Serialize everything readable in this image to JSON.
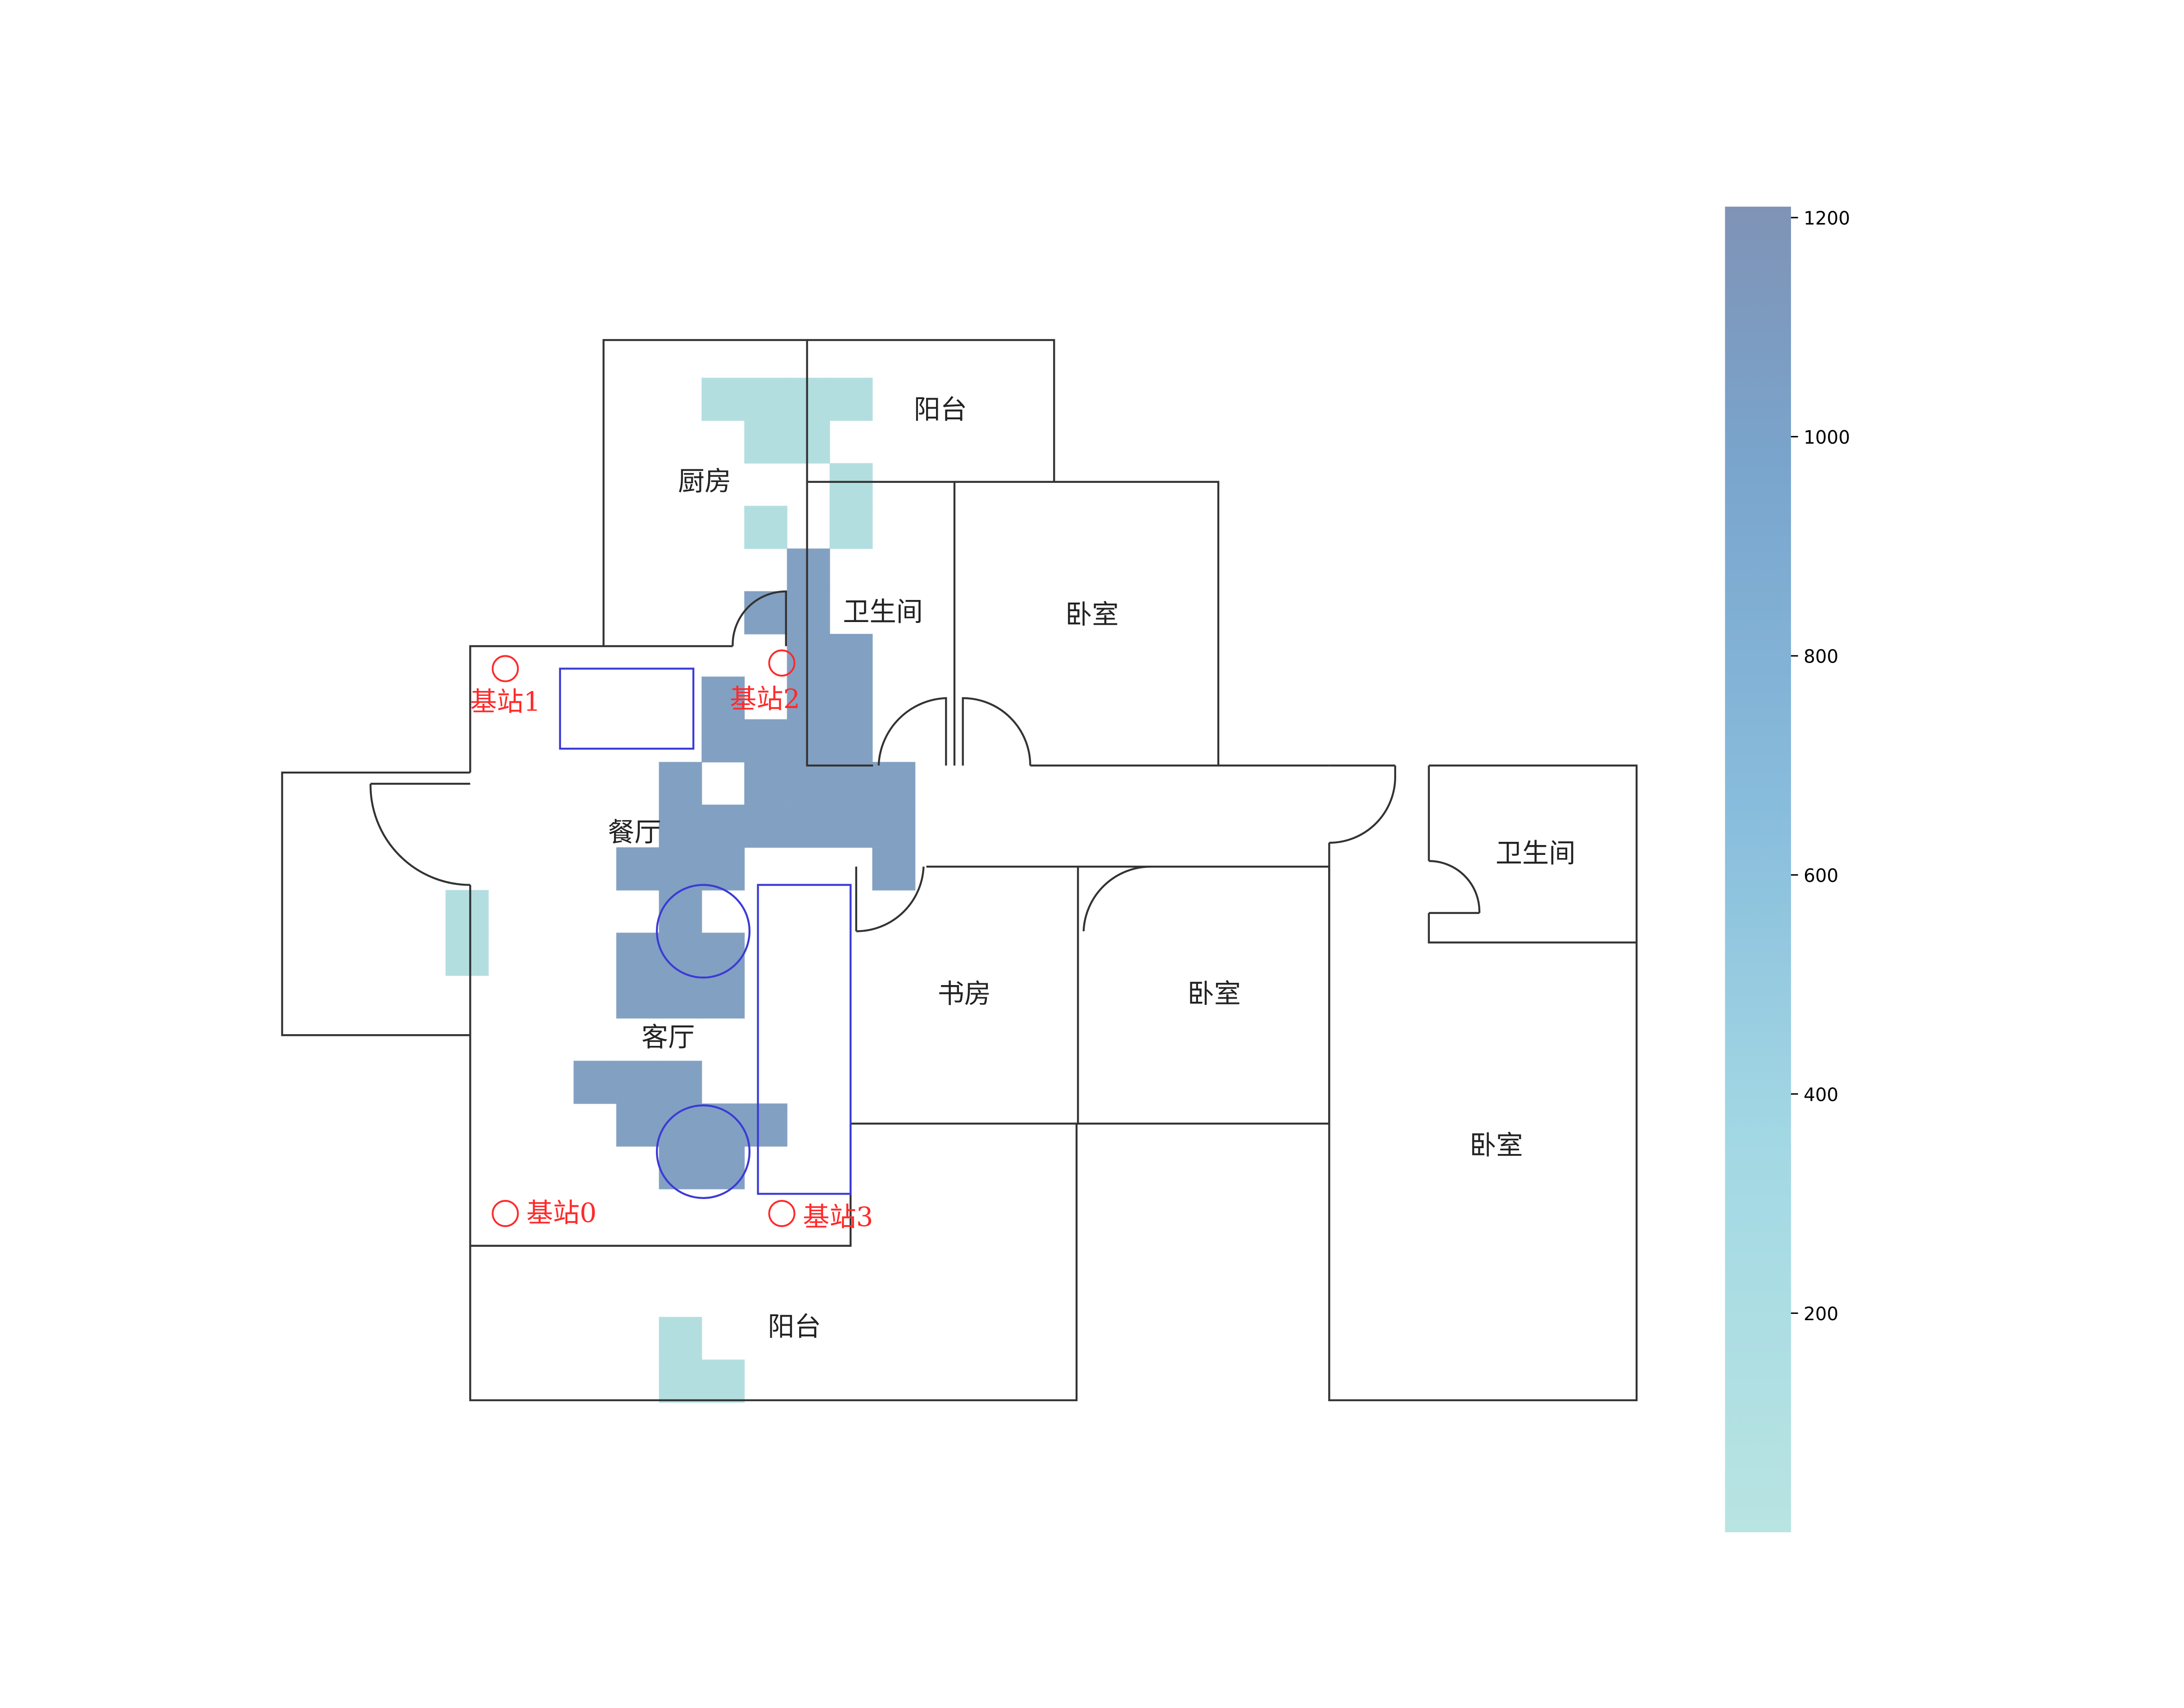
{
  "rooms": [
    {
      "id": "kitchen",
      "label": "厨房"
    },
    {
      "id": "balcony-top",
      "label": "阳台"
    },
    {
      "id": "bathroom-1",
      "label": "卫生间"
    },
    {
      "id": "bedroom-1",
      "label": "卧室"
    },
    {
      "id": "dining",
      "label": "餐厅"
    },
    {
      "id": "living",
      "label": "客厅"
    },
    {
      "id": "study",
      "label": "书房"
    },
    {
      "id": "bedroom-2",
      "label": "卧室"
    },
    {
      "id": "bathroom-2",
      "label": "卫生间"
    },
    {
      "id": "bedroom-3",
      "label": "卧室"
    },
    {
      "id": "balcony-bottom",
      "label": "阳台"
    }
  ],
  "base_stations": [
    {
      "id": "0",
      "label": "基站0"
    },
    {
      "id": "1",
      "label": "基站1"
    },
    {
      "id": "2",
      "label": "基站2"
    },
    {
      "id": "3",
      "label": "基站3"
    }
  ],
  "colors": {
    "wall": "#333333",
    "furniture": "#3b3bd6",
    "station": "#ff2a2a",
    "heat_low": "#b8e4e2",
    "heat_high": "#7f9cc0"
  },
  "colorbar": {
    "min": 0,
    "max": 1210,
    "ticks": [
      "200",
      "400",
      "600",
      "800",
      "1000",
      "1200"
    ]
  },
  "chart_data": {
    "type": "heatmap",
    "value_scale": [
      0,
      1210
    ],
    "cells": [
      {
        "row": 0,
        "col": 5,
        "value": 100
      },
      {
        "row": 0,
        "col": 6,
        "value": 100
      },
      {
        "row": 0,
        "col": 7,
        "value": 100
      },
      {
        "row": 0,
        "col": 8,
        "value": 100
      },
      {
        "row": 1,
        "col": 6,
        "value": 100
      },
      {
        "row": 1,
        "col": 7,
        "value": 100
      },
      {
        "row": 2,
        "col": 8,
        "value": 100
      },
      {
        "row": 3,
        "col": 6,
        "value": 100
      },
      {
        "row": 3,
        "col": 8,
        "value": 100
      },
      {
        "row": 4,
        "col": 7,
        "value": 1150
      },
      {
        "row": 5,
        "col": 6,
        "value": 1150
      },
      {
        "row": 5,
        "col": 7,
        "value": 1150
      },
      {
        "row": 6,
        "col": 7,
        "value": 1150
      },
      {
        "row": 6,
        "col": 8,
        "value": 1150
      },
      {
        "row": 7,
        "col": 5,
        "value": 1150
      },
      {
        "row": 7,
        "col": 7,
        "value": 1150
      },
      {
        "row": 7,
        "col": 8,
        "value": 1150
      },
      {
        "row": 8,
        "col": 5,
        "value": 1150
      },
      {
        "row": 8,
        "col": 6,
        "value": 1150
      },
      {
        "row": 8,
        "col": 7,
        "value": 1150
      },
      {
        "row": 8,
        "col": 8,
        "value": 1150
      },
      {
        "row": 9,
        "col": 4,
        "value": 1150
      },
      {
        "row": 9,
        "col": 6,
        "value": 1150
      },
      {
        "row": 9,
        "col": 7,
        "value": 1150
      },
      {
        "row": 9,
        "col": 8,
        "value": 1150
      },
      {
        "row": 9,
        "col": 9,
        "value": 1150
      },
      {
        "row": 10,
        "col": 4,
        "value": 1150
      },
      {
        "row": 10,
        "col": 5,
        "value": 1150
      },
      {
        "row": 10,
        "col": 6,
        "value": 1150
      },
      {
        "row": 10,
        "col": 7,
        "value": 1150
      },
      {
        "row": 10,
        "col": 8,
        "value": 1150
      },
      {
        "row": 10,
        "col": 9,
        "value": 1150
      },
      {
        "row": 11,
        "col": 3,
        "value": 1150
      },
      {
        "row": 11,
        "col": 4,
        "value": 1150
      },
      {
        "row": 11,
        "col": 5,
        "value": 1150
      },
      {
        "row": 11,
        "col": 9,
        "value": 1150
      },
      {
        "row": 12,
        "col": 4,
        "value": 1150
      },
      {
        "row": 12,
        "col": -1,
        "value": 100
      },
      {
        "row": 13,
        "col": 3,
        "value": 1150
      },
      {
        "row": 13,
        "col": 4,
        "value": 1150
      },
      {
        "row": 13,
        "col": 5,
        "value": 1150
      },
      {
        "row": 13,
        "col": -1,
        "value": 100
      },
      {
        "row": 14,
        "col": 3,
        "value": 1150
      },
      {
        "row": 14,
        "col": 4,
        "value": 1150
      },
      {
        "row": 14,
        "col": 5,
        "value": 1150
      },
      {
        "row": 16,
        "col": 2,
        "value": 1150
      },
      {
        "row": 16,
        "col": 3,
        "value": 1150
      },
      {
        "row": 16,
        "col": 4,
        "value": 1150
      },
      {
        "row": 17,
        "col": 3,
        "value": 1150
      },
      {
        "row": 17,
        "col": 4,
        "value": 1150
      },
      {
        "row": 17,
        "col": 5,
        "value": 1150
      },
      {
        "row": 17,
        "col": 6,
        "value": 1150
      },
      {
        "row": 18,
        "col": 4,
        "value": 1150
      },
      {
        "row": 18,
        "col": 5,
        "value": 1150
      },
      {
        "row": 22,
        "col": 4,
        "value": 100
      },
      {
        "row": 23,
        "col": 4,
        "value": 100
      },
      {
        "row": 23,
        "col": 5,
        "value": 100
      }
    ]
  }
}
